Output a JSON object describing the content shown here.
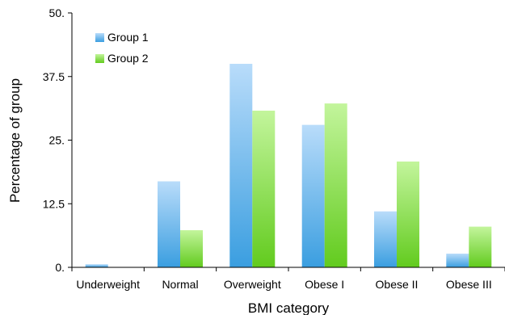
{
  "chart_data": {
    "type": "bar",
    "title": "",
    "xlabel": "BMI category",
    "ylabel": "Percentage of group",
    "categories": [
      "Underweight",
      "Normal",
      "Overweight",
      "Obese I",
      "Obese II",
      "Obese III"
    ],
    "series": [
      {
        "name": "Group 1",
        "values": [
          0.6,
          16.9,
          40.0,
          28.0,
          11.0,
          2.7
        ]
      },
      {
        "name": "Group 2",
        "values": [
          0.0,
          7.3,
          30.8,
          32.2,
          20.8,
          8.0
        ]
      }
    ],
    "ylim": [
      0,
      50
    ],
    "yticks": [
      0,
      12.5,
      25,
      37.5,
      50
    ],
    "ytick_labels": [
      "0.",
      "12.5",
      "25.",
      "37.5",
      "50."
    ],
    "grid": false,
    "legend_position": "top-left",
    "colors": {
      "series_top": [
        "#b9dcfa",
        "#c3f59c"
      ],
      "series_bottom": [
        "#3a9ee0",
        "#62cb1e"
      ],
      "axis": "#000000"
    }
  }
}
